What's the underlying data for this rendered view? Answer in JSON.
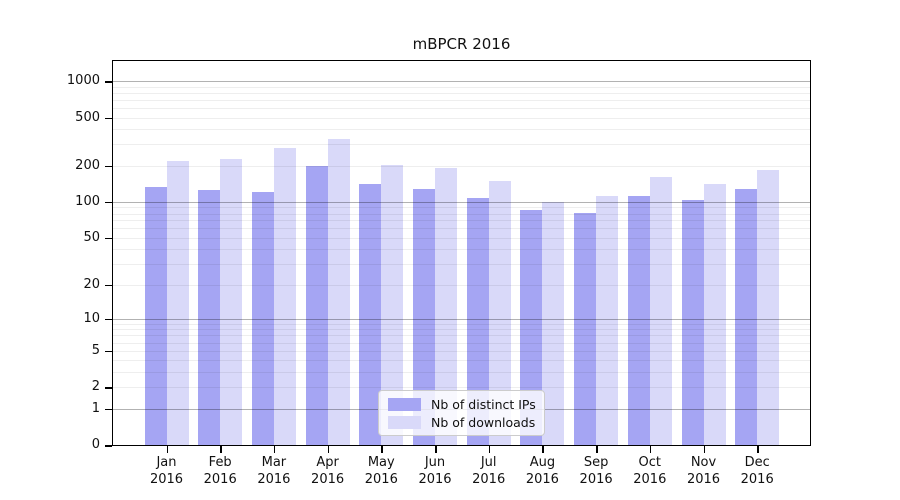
{
  "chart_data": {
    "type": "bar",
    "title": "mBPCR 2016",
    "x_year": "2016",
    "categories": [
      "Jan",
      "Feb",
      "Mar",
      "Apr",
      "May",
      "Jun",
      "Jul",
      "Aug",
      "Sep",
      "Oct",
      "Nov",
      "Dec"
    ],
    "series": [
      {
        "name": "Nb of distinct IPs",
        "color": "#a5a5f3",
        "values": [
          132,
          125,
          121,
          199,
          142,
          127,
          108,
          86,
          81,
          113,
          104,
          127
        ]
      },
      {
        "name": "Nb of downloads",
        "color": "#d9d9f9",
        "values": [
          218,
          228,
          280,
          331,
          204,
          190,
          149,
          100,
          111,
          160,
          140,
          183
        ]
      }
    ],
    "yscale": "log1p",
    "yticks": [
      0,
      1,
      2,
      5,
      10,
      20,
      50,
      100,
      200,
      500,
      1000
    ],
    "ylim": [
      0,
      1460
    ],
    "grid": "horizontal minor gridlines each sub-decade step, darker major lines at 1, 10, 100, 1000, drawn over bars",
    "legend_position": "lower center inside plot"
  },
  "colors": {
    "background": "#ffffff",
    "axis": "#000000",
    "text": "#111111",
    "grid_minor": "rgba(0,0,0,0.065)",
    "grid_major": "rgba(0,0,0,0.3)",
    "legend_border": "#cccccc",
    "legend_bg": "rgba(255,255,255,0.8)"
  }
}
